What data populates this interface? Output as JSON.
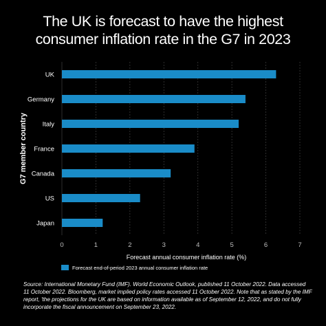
{
  "title_lines": [
    "The UK is forecast to have the highest",
    "consumer inflation rate in the G7 in 2023"
  ],
  "source_text": "Source: International Monetary Fund (IMF). World Economic Outlook, published 11 October 2022. Data accessed 11 October 2022. Bloomberg, market implied policy rates accessed 11 October 2022. Note that as stated by the IMF report, 'the projections for the UK are based on information available as of September 12, 2022, and do not fully incorporate the fiscal announcement on September 23, 2022.",
  "colors": {
    "background": "#000000",
    "bar": "#1a8cc8",
    "grid": "#3a3a3a",
    "text": "#ffffff",
    "tick": "#bfbfbf"
  },
  "chart_data": {
    "type": "bar",
    "orientation": "horizontal",
    "categories": [
      "UK",
      "Germany",
      "Italy",
      "France",
      "Canada",
      "US",
      "Japan"
    ],
    "series": [
      {
        "name": "Forecast end-of-period 2023 annual consumer inflation rate",
        "values": [
          6.3,
          5.4,
          5.2,
          3.9,
          3.2,
          2.3,
          1.2
        ]
      }
    ],
    "xlabel": "Forecast annual consumer inflation rate (%)",
    "ylabel": "G7 member country",
    "xlim": [
      0,
      7
    ],
    "xticks": [
      0,
      1,
      2,
      3,
      4,
      5,
      6,
      7
    ],
    "grid": "vertical",
    "legend_position": "bottom-left"
  }
}
